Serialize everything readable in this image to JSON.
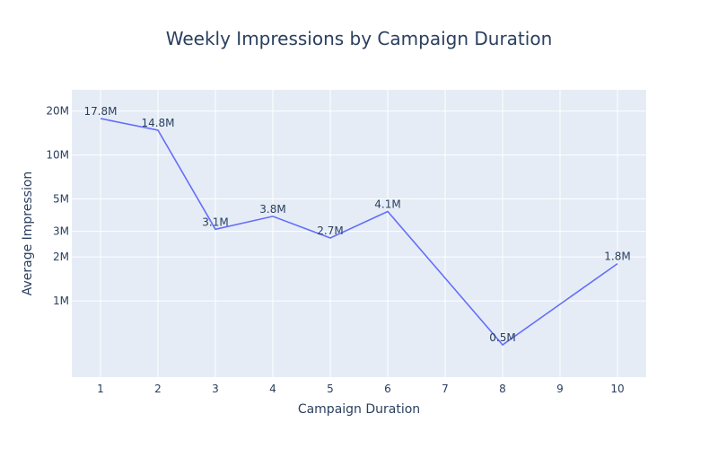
{
  "chart_data": {
    "type": "line",
    "title": "Weekly Impressions by Campaign Duration",
    "xlabel": "Campaign Duration",
    "ylabel": "Average Impression",
    "y_scale": "log",
    "grid": true,
    "x_ticks": [
      "1",
      "2",
      "3",
      "4",
      "5",
      "6",
      "7",
      "8",
      "9",
      "10"
    ],
    "y_ticks": [
      {
        "value": 1000000,
        "label": "1M"
      },
      {
        "value": 2000000,
        "label": "2M"
      },
      {
        "value": 3000000,
        "label": "3M"
      },
      {
        "value": 5000000,
        "label": "5M"
      },
      {
        "value": 10000000,
        "label": "10M"
      },
      {
        "value": 20000000,
        "label": "20M"
      }
    ],
    "xlim": [
      0.5,
      10.5
    ],
    "ylim": [
      300000,
      28000000
    ],
    "series": [
      {
        "color": "#636efa",
        "x": [
          1,
          2,
          3,
          4,
          5,
          6,
          8,
          10
        ],
        "y": [
          17800000,
          14800000,
          3100000,
          3800000,
          2700000,
          4100000,
          500000,
          1800000
        ],
        "labels": [
          "17.8M",
          "14.8M",
          "3.1M",
          "3.8M",
          "2.7M",
          "4.1M",
          "0.5M",
          "1.8M"
        ]
      }
    ],
    "colors": {
      "plot_bg": "#e5ecf6",
      "grid": "#ffffff",
      "text": "#2a3f5f"
    }
  }
}
